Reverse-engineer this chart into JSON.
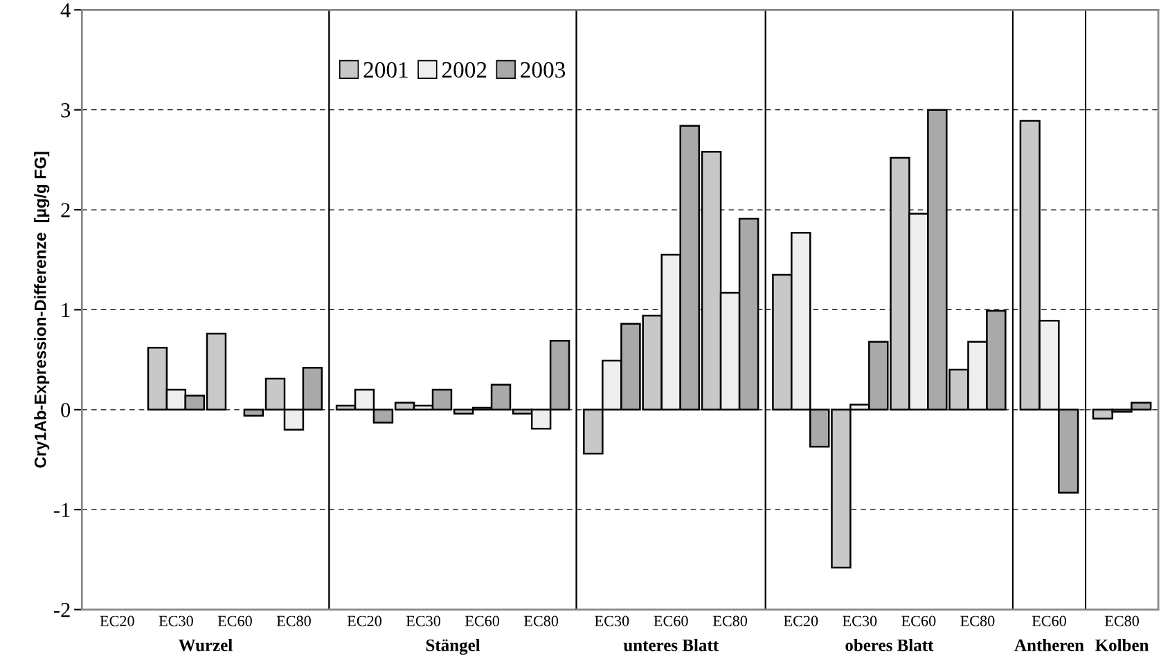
{
  "chart_data": [
    {
      "type": "bar",
      "xlabel": "Wurzel",
      "ylabel": "Cry1Ab-Expression-Differenze  [µg/g FG]",
      "categories": [
        "EC20",
        "EC30",
        "EC60",
        "EC80"
      ],
      "ylim": [
        -2,
        4
      ],
      "yticks": [
        -2,
        -1,
        0,
        1,
        2,
        3,
        4
      ],
      "grid": "y",
      "series": [
        {
          "color": "#c8c8c8",
          "values": [
            null,
            0.62,
            0.76,
            0.31
          ]
        },
        {
          "color": "#eeeeee",
          "values": [
            null,
            0.2,
            null,
            -0.2
          ]
        },
        {
          "color": "#a9a9a9",
          "values": [
            null,
            0.14,
            -0.06,
            0.42
          ]
        }
      ]
    },
    {
      "type": "bar",
      "xlabel": "Stängel",
      "categories": [
        "EC20",
        "EC30",
        "EC60",
        "EC80"
      ],
      "ylim": [
        -2,
        4
      ],
      "yticks": [
        -2,
        -1,
        0,
        1,
        2,
        3,
        4
      ],
      "grid": "y",
      "tick_labels": "x",
      "legend": "top",
      "series": [
        {
          "name": "2001",
          "color": "#c8c8c8",
          "values": [
            0.04,
            0.07,
            -0.04,
            -0.04
          ]
        },
        {
          "name": "2002",
          "color": "#eeeeee",
          "values": [
            0.2,
            0.04,
            0.02,
            -0.19
          ]
        },
        {
          "name": "2003",
          "color": "#a9a9a9",
          "values": [
            -0.13,
            0.2,
            0.25,
            0.69
          ]
        }
      ]
    },
    {
      "type": "bar",
      "xlabel": "unteres Blatt",
      "categories": [
        "EC30",
        "EC60",
        "EC80"
      ],
      "ylim": [
        -2,
        4
      ],
      "yticks": [
        -2,
        -1,
        0,
        1,
        2,
        3,
        4
      ],
      "grid": "y",
      "tick_labels": "x",
      "series": [
        {
          "color": "#c8c8c8",
          "values": [
            -0.44,
            0.94,
            2.58
          ]
        },
        {
          "color": "#eeeeee",
          "values": [
            0.49,
            1.55,
            1.17
          ]
        },
        {
          "color": "#a9a9a9",
          "values": [
            0.86,
            2.84,
            1.91
          ]
        }
      ]
    },
    {
      "type": "bar",
      "xlabel": "oberes Blatt",
      "categories": [
        "EC20",
        "EC30",
        "EC60",
        "EC80"
      ],
      "ylim": [
        -2,
        4
      ],
      "yticks": [
        -2,
        -1,
        0,
        1,
        2,
        3,
        4
      ],
      "grid": "y",
      "tick_labels": "x",
      "series": [
        {
          "color": "#c8c8c8",
          "values": [
            1.35,
            -1.58,
            2.52,
            0.4
          ]
        },
        {
          "color": "#eeeeee",
          "values": [
            1.77,
            0.05,
            1.96,
            0.68
          ]
        },
        {
          "color": "#a9a9a9",
          "values": [
            -0.37,
            0.68,
            3.0,
            0.99
          ]
        }
      ]
    },
    {
      "type": "bar",
      "xlabel": "Antheren",
      "categories": [
        "EC60"
      ],
      "ylim": [
        -2,
        4
      ],
      "yticks": [
        -2,
        -1,
        0,
        1,
        2,
        3,
        4
      ],
      "grid": "y",
      "tick_labels": "x",
      "series": [
        {
          "color": "#c8c8c8",
          "values": [
            2.89
          ]
        },
        {
          "color": "#eeeeee",
          "values": [
            0.89
          ]
        },
        {
          "color": "#a9a9a9",
          "values": [
            -0.83
          ]
        }
      ]
    },
    {
      "type": "bar",
      "xlabel": "Kolben",
      "categories": [
        "EC80"
      ],
      "ylim": [
        -2,
        4
      ],
      "yticks": [
        -2,
        -1,
        0,
        1,
        2,
        3,
        4
      ],
      "grid": "y",
      "tick_labels": "x",
      "series": [
        {
          "color": "#c8c8c8",
          "values": [
            -0.09
          ]
        },
        {
          "color": "#eeeeee",
          "values": [
            -0.02
          ]
        },
        {
          "color": "#a9a9a9",
          "values": [
            0.07
          ]
        }
      ]
    }
  ]
}
